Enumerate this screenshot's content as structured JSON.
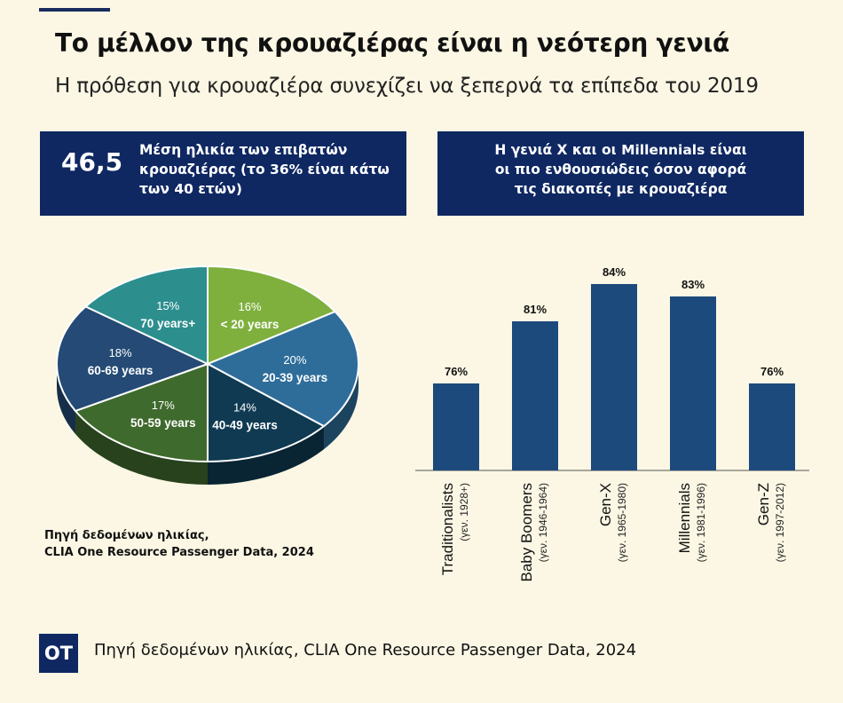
{
  "header": {
    "title": "Το μέλλον της κρουαζιέρας είναι η νεότερη γενιά",
    "subtitle": "Η πρόθεση για κρουαζιέρα συνεχίζει να ξεπερνά τα επίπεδα του 2019"
  },
  "left_box": {
    "number": "46,5",
    "text": "Μέση ηλικία των επιβατών κρουαζιέρας (το 36% είναι κάτω των 40 ετών)"
  },
  "right_box": {
    "lines": [
      "Η γενιά Χ και οι Millennials είναι",
      "οι πιο ενθουσιώδεις όσον αφορά",
      "τις διακοπές με κρουαζιέρα"
    ]
  },
  "pie_source": {
    "line1": "Πηγή δεδομένων ηλικίας,",
    "line2": "CLIA One Resource Passenger Data, 2024"
  },
  "footer": {
    "logo": "OT",
    "text": "Πηγή δεδομένων ηλικίας, CLIA One Resource Passenger Data, 2024"
  },
  "colors": {
    "navy": "#0f2862",
    "bar": "#1c4a7c",
    "background": "#fbf7e4"
  },
  "chart_data": [
    {
      "type": "pie",
      "categories": [
        "< 20 years",
        "20-39 years",
        "40-49 years",
        "50-59 years",
        "60-69 years",
        "70 years+"
      ],
      "values": [
        16,
        20,
        14,
        17,
        18,
        15
      ],
      "labels": [
        "16%",
        "20%",
        "14%",
        "17%",
        "18%",
        "15%"
      ],
      "colors": [
        "#7fb03e",
        "#2e6d9a",
        "#0f3a52",
        "#3f6a2d",
        "#244a75",
        "#2d8e8e"
      ]
    },
    {
      "type": "bar",
      "categories": [
        "Traditionalists",
        "Baby Boomers",
        "Gen-X",
        "Millennials",
        "Gen-Z"
      ],
      "sublabels": [
        "(γεν. 1928+)",
        "(γεν. 1946-1964)",
        "(γεν. 1965-1980)",
        "(γεν. 1981-1996)",
        "(γεν. 1997-2012)"
      ],
      "values": [
        76,
        81,
        84,
        83,
        76
      ],
      "value_labels": [
        "76%",
        "81%",
        "84%",
        "83%",
        "76%"
      ],
      "ylim": [
        70,
        85
      ]
    }
  ]
}
